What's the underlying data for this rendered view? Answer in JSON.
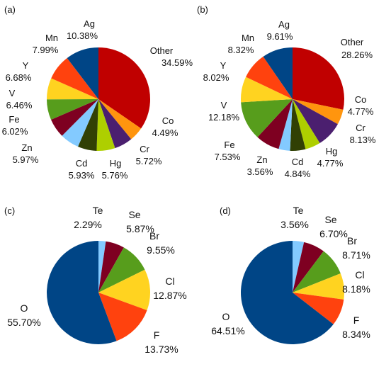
{
  "chart_data": [
    {
      "type": "pie",
      "panel_label": "(a)",
      "slices": [
        {
          "name": "Other",
          "value": 34.59,
          "text": "34.59%",
          "color": "#c00000"
        },
        {
          "name": "Co",
          "value": 4.49,
          "text": "4.49%",
          "color": "#ff950e"
        },
        {
          "name": "Cr",
          "value": 5.72,
          "text": "5.72%",
          "color": "#4b1f6f"
        },
        {
          "name": "Hg",
          "value": 5.76,
          "text": "5.76%",
          "color": "#aecf00"
        },
        {
          "name": "Cd",
          "value": 5.93,
          "text": "5.93%",
          "color": "#314004"
        },
        {
          "name": "Zn",
          "value": 5.97,
          "text": "5.97%",
          "color": "#83caff"
        },
        {
          "name": "Fe",
          "value": 6.02,
          "text": "6.02%",
          "color": "#7e0021"
        },
        {
          "name": "V",
          "value": 6.46,
          "text": "6.46%",
          "color": "#579d1c"
        },
        {
          "name": "Y",
          "value": 6.68,
          "text": "6.68%",
          "color": "#ffd320"
        },
        {
          "name": "Mn",
          "value": 7.99,
          "text": "7.99%",
          "color": "#ff420e"
        },
        {
          "name": "Ag",
          "value": 10.38,
          "text": "10.38%",
          "color": "#004586"
        }
      ]
    },
    {
      "type": "pie",
      "panel_label": "(b)",
      "slices": [
        {
          "name": "Other",
          "value": 28.26,
          "text": "28.26%",
          "color": "#c00000"
        },
        {
          "name": "Co",
          "value": 4.77,
          "text": "4.77%",
          "color": "#ff950e"
        },
        {
          "name": "Cr",
          "value": 8.13,
          "text": "8.13%",
          "color": "#4b1f6f"
        },
        {
          "name": "Hg",
          "value": 4.77,
          "text": "4.77%",
          "color": "#aecf00"
        },
        {
          "name": "Cd",
          "value": 4.84,
          "text": "4.84%",
          "color": "#314004"
        },
        {
          "name": "Zn",
          "value": 3.56,
          "text": "3.56%",
          "color": "#83caff"
        },
        {
          "name": "Fe",
          "value": 7.53,
          "text": "7.53%",
          "color": "#7e0021"
        },
        {
          "name": "V",
          "value": 12.18,
          "text": "12.18%",
          "color": "#579d1c"
        },
        {
          "name": "Y",
          "value": 8.02,
          "text": "8.02%",
          "color": "#ffd320"
        },
        {
          "name": "Mn",
          "value": 8.32,
          "text": "8.32%",
          "color": "#ff420e"
        },
        {
          "name": "Ag",
          "value": 9.61,
          "text": "9.61%",
          "color": "#004586"
        }
      ]
    },
    {
      "type": "pie",
      "panel_label": "(c)",
      "slices": [
        {
          "name": "Te",
          "value": 2.29,
          "text": "2.29%",
          "color": "#83caff"
        },
        {
          "name": "Se",
          "value": 5.87,
          "text": "5.87%",
          "color": "#7e0021"
        },
        {
          "name": "Br",
          "value": 9.55,
          "text": "9.55%",
          "color": "#579d1c"
        },
        {
          "name": "Cl",
          "value": 12.87,
          "text": "12.87%",
          "color": "#ffd320"
        },
        {
          "name": "F",
          "value": 13.73,
          "text": "13.73%",
          "color": "#ff420e"
        },
        {
          "name": "O",
          "value": 55.7,
          "text": "55.70%",
          "color": "#004586"
        }
      ]
    },
    {
      "type": "pie",
      "panel_label": "(d)",
      "slices": [
        {
          "name": "Te",
          "value": 3.56,
          "text": "3.56%",
          "color": "#83caff"
        },
        {
          "name": "Se",
          "value": 6.7,
          "text": "6.70%",
          "color": "#7e0021"
        },
        {
          "name": "Br",
          "value": 8.71,
          "text": "8.71%",
          "color": "#579d1c"
        },
        {
          "name": "Cl",
          "value": 8.18,
          "text": "8.18%",
          "color": "#ffd320"
        },
        {
          "name": "F",
          "value": 8.34,
          "text": "8.34%",
          "color": "#ff420e"
        },
        {
          "name": "O",
          "value": 64.51,
          "text": "64.51%",
          "color": "#004586"
        }
      ]
    }
  ]
}
